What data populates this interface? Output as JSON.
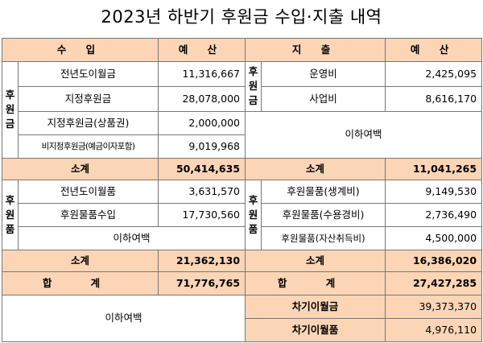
{
  "title": "2023년 하반기 후원금 수입·지출 내역",
  "headers": {
    "income": "수 입",
    "income_budget": "예 산",
    "expense": "지 출",
    "expense_budget": "예 산"
  },
  "income_money": {
    "side_label": "후원금",
    "rows": [
      {
        "label": "전년도이월금",
        "value": "11,316,667"
      },
      {
        "label": "지정후원금",
        "value": "28,078,000"
      },
      {
        "label": "지정후원금(상품권)",
        "value": "2,000,000"
      },
      {
        "label": "비지정후원금(예금이자포함)",
        "value": "9,019,968"
      }
    ],
    "subtotal_label": "소계",
    "subtotal_value": "50,414,635"
  },
  "expense_money": {
    "side_label": "후원금",
    "rows": [
      {
        "label": "운영비",
        "value": "2,425,095"
      },
      {
        "label": "사업비",
        "value": "8,616,170"
      }
    ],
    "blank_text": "이하여백",
    "subtotal_label": "소계",
    "subtotal_value": "11,041,265"
  },
  "income_goods": {
    "side_label": "후원품",
    "rows": [
      {
        "label": "전년도이월품",
        "value": "3,631,570"
      },
      {
        "label": "후원물품수입",
        "value": "17,730,560"
      }
    ],
    "blank_text": "이하여백",
    "subtotal_label": "소계",
    "subtotal_value": "21,362,130"
  },
  "expense_goods": {
    "side_label": "후원품",
    "rows": [
      {
        "label": "후원물품(생계비)",
        "value": "9,149,530"
      },
      {
        "label": "후원물품(수용경비)",
        "value": "2,736,490"
      },
      {
        "label": "후원물품(자산취득비)",
        "value": "4,500,000"
      }
    ],
    "subtotal_label": "소계",
    "subtotal_value": "16,386,020"
  },
  "totals": {
    "income_label": "합 계",
    "income_value": "71,776,765",
    "expense_label": "합 계",
    "expense_value": "27,427,285"
  },
  "bottom": {
    "blank_text": "이하여백",
    "carry_money_label": "차기이월금",
    "carry_money_value": "39,373,370",
    "carry_goods_label": "차기이월품",
    "carry_goods_value": "4,976,110"
  },
  "colors": {
    "header_fill": "#fbd5b5",
    "border": "#777777"
  }
}
